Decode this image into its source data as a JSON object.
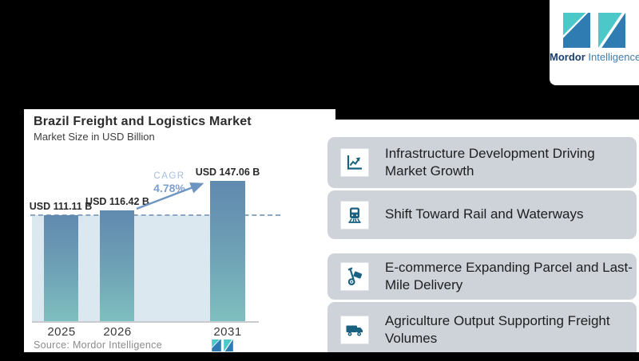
{
  "brand": {
    "name_bold": "Mordor",
    "name_light": "Intelligence"
  },
  "chart": {
    "source": "Source: Mordor Intelligence",
    "cagr_label": "CAGR",
    "cagr_value": "4.78%"
  },
  "chart_data": {
    "type": "bar",
    "title": "Brazil Freight and Logistics Market",
    "subtitle": "Market Size in USD Billion",
    "categories": [
      "2025",
      "2026",
      "2031"
    ],
    "values": [
      111.11,
      116.42,
      147.06
    ],
    "value_labels": [
      "USD 111.11 B",
      "USD 116.42 B",
      "USD 147.06 B"
    ],
    "unit": "USD Billion",
    "ylim": [
      0,
      190
    ],
    "gridlines": false,
    "reference_line_value": 111.11,
    "annotations": [
      {
        "text": "CAGR 4.78%",
        "type": "growth-arrow",
        "from": "2026",
        "to": "2031"
      }
    ]
  },
  "highlights": [
    {
      "icon": "line-chart-icon",
      "text": "Infrastructure Development Driving Market Growth"
    },
    {
      "icon": "train-icon",
      "text": "Shift Toward Rail and Waterways"
    },
    {
      "icon": "hand-truck-icon",
      "text": "E-commerce Expanding Parcel and Last-Mile Delivery"
    },
    {
      "icon": "truck-icon",
      "text": "Agriculture Output Supporting Freight Volumes"
    }
  ],
  "colors": {
    "background": "#000000",
    "card_gray": "#CED3DA",
    "icon_blue": "#19617F",
    "bar_top": "#6189AF",
    "bar_bottom": "#7FBFBF",
    "shade": "#DCE8F0",
    "dashed_line": "#8AA8C4",
    "arrow": "#6E95C2",
    "logo_teal": "#4CC8C9",
    "logo_blue": "#2E7CB2"
  }
}
